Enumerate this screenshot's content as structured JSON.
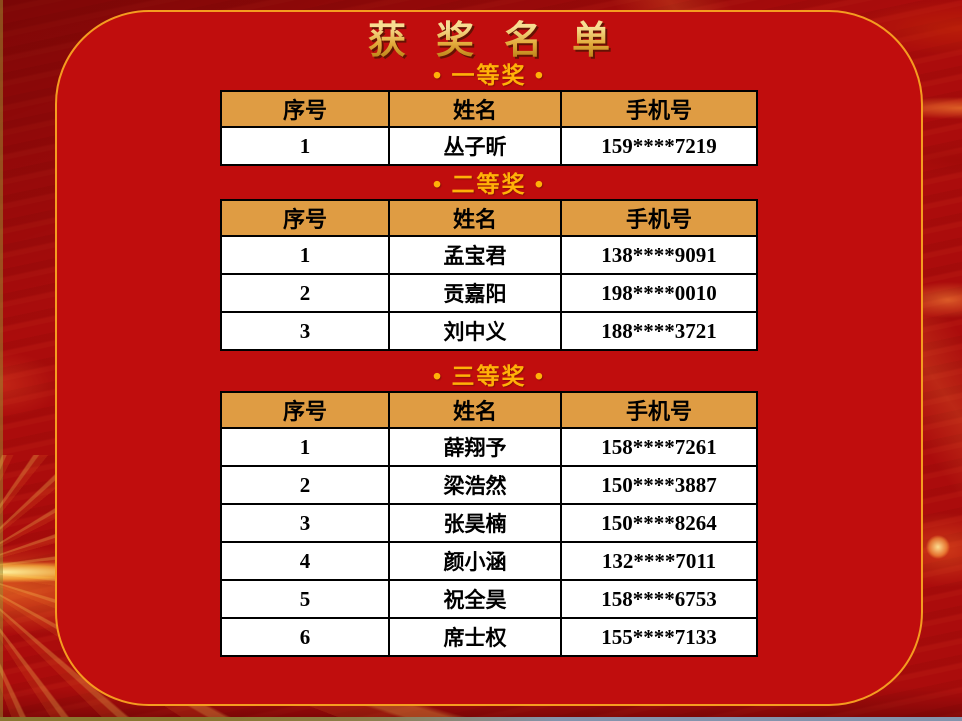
{
  "slide": {
    "title": "获奖名单",
    "sections": [
      {
        "label": "• 一等奖 •",
        "table": {
          "headers": [
            "序号",
            "姓名",
            "手机号"
          ],
          "rows": [
            [
              "1",
              "丛子昕",
              "159****7219"
            ]
          ]
        }
      },
      {
        "label": "• 二等奖 •",
        "table": {
          "headers": [
            "序号",
            "姓名",
            "手机号"
          ],
          "rows": [
            [
              "1",
              "孟宝君",
              "138****9091"
            ],
            [
              "2",
              "贡嘉阳",
              "198****0010"
            ],
            [
              "3",
              "刘中义",
              "188****3721"
            ]
          ]
        }
      },
      {
        "label": "• 三等奖 •",
        "table": {
          "headers": [
            "序号",
            "姓名",
            "手机号"
          ],
          "rows": [
            [
              "1",
              "薛翔予",
              "158****7261"
            ],
            [
              "2",
              "梁浩然",
              "150****3887"
            ],
            [
              "3",
              "张昊楠",
              "150****8264"
            ],
            [
              "4",
              "颜小涵",
              "132****7011"
            ],
            [
              "5",
              "祝全昊",
              "158****6753"
            ],
            [
              "6",
              "席士权",
              "155****7133"
            ]
          ]
        }
      }
    ],
    "colors": {
      "slide_background": "#C00D0D",
      "outer_background": "#AB0C0C",
      "border_gold": "#F59C20",
      "table_header_orange": "#DF9C43",
      "section_label_gold": "#FFB108",
      "title_gold": "#E3AB3C",
      "table_text": "#000000",
      "table_body_background": "#FFFFFF"
    }
  }
}
